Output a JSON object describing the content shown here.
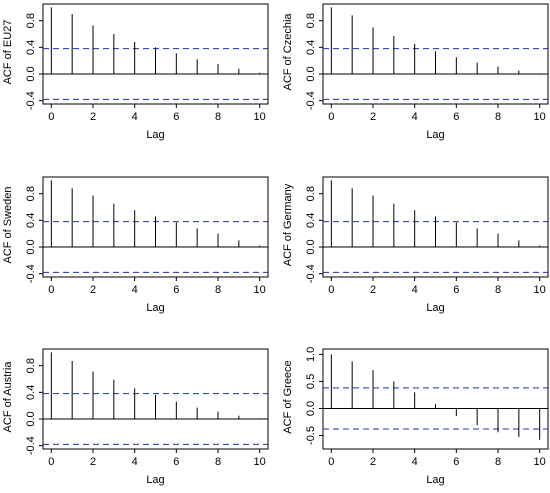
{
  "colors": {
    "bar": "#000000",
    "ci": "#1f2fa8",
    "zero": "#000000",
    "frame": "#000000"
  },
  "chart_data": [
    {
      "type": "bar",
      "ylabel": "ACF of EU27",
      "xlabel": "Lag",
      "x": [
        0,
        1,
        2,
        3,
        4,
        5,
        6,
        7,
        8,
        9,
        10
      ],
      "values": [
        1.0,
        0.9,
        0.73,
        0.6,
        0.48,
        0.4,
        0.31,
        0.22,
        0.15,
        0.08,
        0.02
      ],
      "ci": 0.38,
      "ylim": [
        -0.45,
        1.05
      ],
      "yticks": [
        -0.4,
        0.0,
        0.4,
        0.8
      ],
      "ytick_labels": [
        "-0.4",
        "0.0",
        "0.4",
        "0.8"
      ],
      "xticks": [
        0,
        2,
        4,
        6,
        8,
        10
      ],
      "xtick_labels": [
        "0",
        "2",
        "4",
        "6",
        "8",
        "10"
      ],
      "grid": false
    },
    {
      "type": "bar",
      "ylabel": "ACF of Czechia",
      "xlabel": "Lag",
      "x": [
        0,
        1,
        2,
        3,
        4,
        5,
        6,
        7,
        8,
        9,
        10
      ],
      "values": [
        1.0,
        0.88,
        0.7,
        0.57,
        0.45,
        0.34,
        0.25,
        0.17,
        0.11,
        0.05,
        0.01
      ],
      "ci": 0.38,
      "ylim": [
        -0.45,
        1.05
      ],
      "yticks": [
        -0.4,
        0.0,
        0.4,
        0.8
      ],
      "ytick_labels": [
        "-0.4",
        "0.0",
        "0.4",
        "0.8"
      ],
      "xticks": [
        0,
        2,
        4,
        6,
        8,
        10
      ],
      "xtick_labels": [
        "0",
        "2",
        "4",
        "6",
        "8",
        "10"
      ],
      "grid": false
    },
    {
      "type": "bar",
      "ylabel": "ACF of Sweden",
      "xlabel": "Lag",
      "x": [
        0,
        1,
        2,
        3,
        4,
        5,
        6,
        7,
        8,
        9,
        10
      ],
      "values": [
        1.0,
        0.88,
        0.77,
        0.65,
        0.55,
        0.46,
        0.37,
        0.28,
        0.2,
        0.1,
        0.02
      ],
      "ci": 0.38,
      "ylim": [
        -0.45,
        1.05
      ],
      "yticks": [
        -0.4,
        0.0,
        0.4,
        0.8
      ],
      "ytick_labels": [
        "-0.4",
        "0.0",
        "0.4",
        "0.8"
      ],
      "xticks": [
        0,
        2,
        4,
        6,
        8,
        10
      ],
      "xtick_labels": [
        "0",
        "2",
        "4",
        "6",
        "8",
        "10"
      ],
      "grid": false
    },
    {
      "type": "bar",
      "ylabel": "ACF of Germany",
      "xlabel": "Lag",
      "x": [
        0,
        1,
        2,
        3,
        4,
        5,
        6,
        7,
        8,
        9,
        10
      ],
      "values": [
        1.0,
        0.88,
        0.77,
        0.65,
        0.55,
        0.46,
        0.37,
        0.28,
        0.2,
        0.1,
        0.02
      ],
      "ci": 0.38,
      "ylim": [
        -0.45,
        1.05
      ],
      "yticks": [
        -0.4,
        0.0,
        0.4,
        0.8
      ],
      "ytick_labels": [
        "-0.4",
        "0.0",
        "0.4",
        "0.8"
      ],
      "xticks": [
        0,
        2,
        4,
        6,
        8,
        10
      ],
      "xtick_labels": [
        "0",
        "2",
        "4",
        "6",
        "8",
        "10"
      ],
      "grid": false
    },
    {
      "type": "bar",
      "ylabel": "ACF of Austria",
      "xlabel": "Lag",
      "x": [
        0,
        1,
        2,
        3,
        4,
        5,
        6,
        7,
        8,
        9,
        10
      ],
      "values": [
        1.0,
        0.87,
        0.71,
        0.59,
        0.46,
        0.36,
        0.26,
        0.17,
        0.11,
        0.05,
        0.01
      ],
      "ci": 0.38,
      "ylim": [
        -0.45,
        1.05
      ],
      "yticks": [
        -0.4,
        0.0,
        0.4,
        0.8
      ],
      "ytick_labels": [
        "-0.4",
        "0.0",
        "0.4",
        "0.8"
      ],
      "xticks": [
        0,
        2,
        4,
        6,
        8,
        10
      ],
      "xtick_labels": [
        "0",
        "2",
        "4",
        "6",
        "8",
        "10"
      ],
      "grid": false
    },
    {
      "type": "bar",
      "ylabel": "ACF of Greece",
      "xlabel": "Lag",
      "x": [
        0,
        1,
        2,
        3,
        4,
        5,
        6,
        7,
        8,
        9,
        10
      ],
      "values": [
        1.0,
        0.87,
        0.71,
        0.5,
        0.3,
        0.08,
        -0.14,
        -0.31,
        -0.44,
        -0.53,
        -0.58
      ],
      "ci": 0.38,
      "ylim": [
        -0.75,
        1.1
      ],
      "yticks": [
        -0.5,
        0.0,
        0.5,
        1.0
      ],
      "ytick_labels": [
        "-0.5",
        "0.0",
        "0.5",
        "1.0"
      ],
      "xticks": [
        0,
        2,
        4,
        6,
        8,
        10
      ],
      "xtick_labels": [
        "0",
        "2",
        "4",
        "6",
        "8",
        "10"
      ],
      "grid": false
    }
  ]
}
